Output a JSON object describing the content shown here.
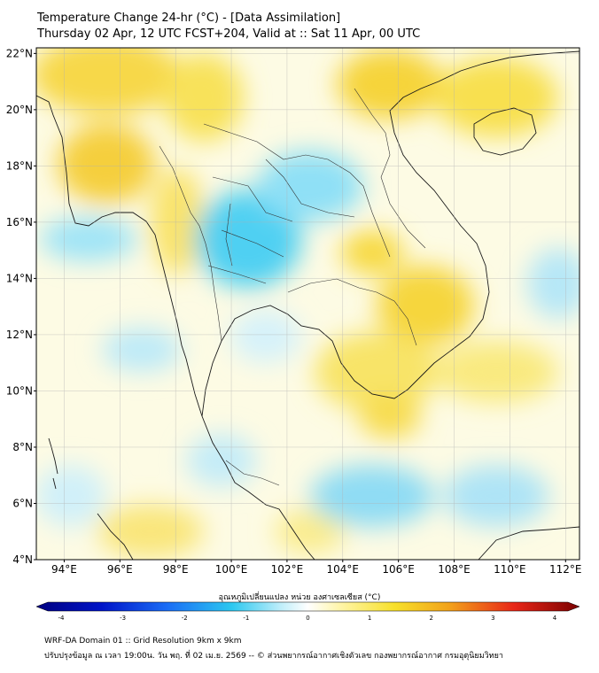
{
  "title": {
    "line1": "Temperature Change 24-hr (°C) - [Data Assimilation]",
    "line2": "Thursday 02 Apr, 12 UTC FCST+204, Valid at :: Sat 11 Apr, 00 UTC"
  },
  "map": {
    "lon_range": [
      93,
      112.5
    ],
    "lat_range": [
      4,
      22.2
    ],
    "lon_ticks": [
      {
        "value": 94,
        "label": "94°E"
      },
      {
        "value": 96,
        "label": "96°E"
      },
      {
        "value": 98,
        "label": "98°E"
      },
      {
        "value": 100,
        "label": "100°E"
      },
      {
        "value": 102,
        "label": "102°E"
      },
      {
        "value": 104,
        "label": "104°E"
      },
      {
        "value": 106,
        "label": "106°E"
      },
      {
        "value": 108,
        "label": "108°E"
      },
      {
        "value": 110,
        "label": "110°E"
      },
      {
        "value": 112,
        "label": "112°E"
      }
    ],
    "lat_ticks": [
      {
        "value": 22,
        "label": "22°N"
      },
      {
        "value": 20,
        "label": "20°N"
      },
      {
        "value": 18,
        "label": "18°N"
      },
      {
        "value": 16,
        "label": "16°N"
      },
      {
        "value": 14,
        "label": "14°N"
      },
      {
        "value": 12,
        "label": "12°N"
      },
      {
        "value": 10,
        "label": "10°N"
      },
      {
        "value": 8,
        "label": "8°N"
      },
      {
        "value": 6,
        "label": "6°N"
      },
      {
        "value": 4,
        "label": "4°N"
      }
    ],
    "grid": true
  },
  "colorbar": {
    "label": "อุณหภูมิเปลี่ยนแปลง หน่วย องศาเซลเซียส (°C)",
    "min": -4,
    "max": 4,
    "ticks": [
      "-4",
      "-3",
      "-2",
      "-1",
      "0",
      "1",
      "2",
      "3",
      "4"
    ],
    "colors": {
      "dark_blue": "#000080",
      "blue": "#1440ff",
      "cyan": "#2cc8f0",
      "light_cyan": "#bfeefa",
      "white": "#ffffff",
      "light_yellow": "#fff5a8",
      "yellow": "#f7e02a",
      "orange": "#f2a21a",
      "red": "#e82618",
      "dark_red": "#7a0000"
    }
  },
  "footer": {
    "line1": "WRF-DA Domain 01 :: Grid Resolution 9km x 9km",
    "line2": "ปรับปรุงข้อมูล ณ เวลา 19:00น. วัน พฤ. ที่ 02 เม.ย. 2569 -- © ส่วนพยากรณ์อากาศเชิงตัวเลข กองพยากรณ์อากาศ กรมอุตุนิยมวิทยา"
  }
}
